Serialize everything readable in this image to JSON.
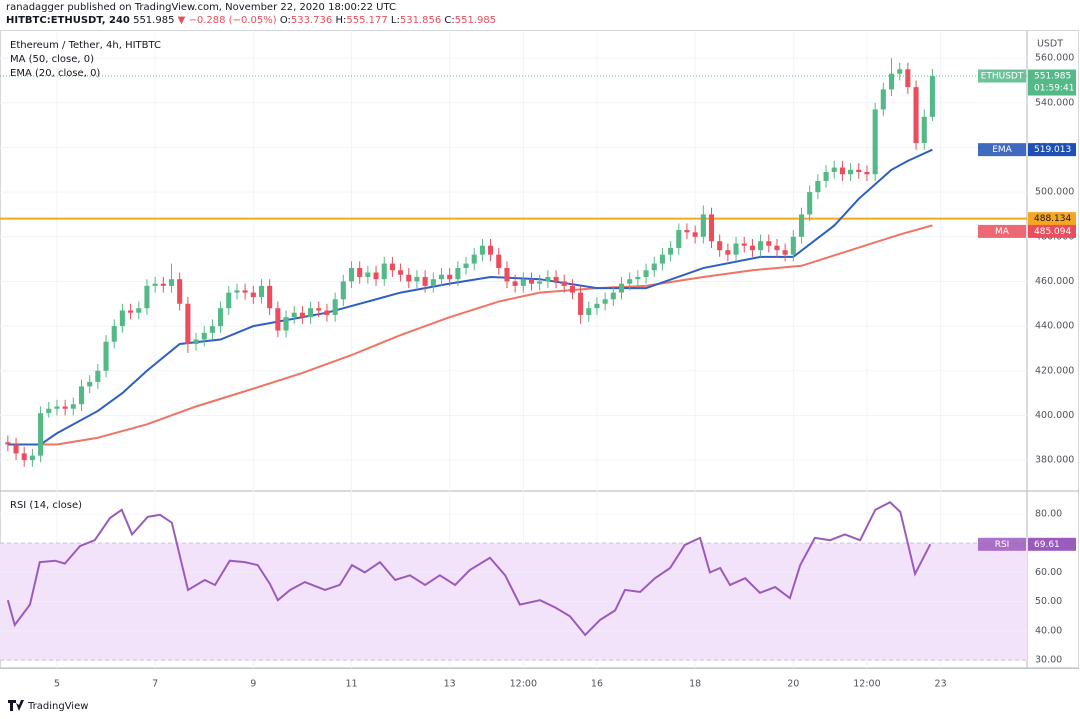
{
  "header": {
    "publisher": "ranadagger published on TradingView.com, November 22, 2020 18:00:22 UTC",
    "symbol": "HITBTC:ETHUSDT, 240",
    "change": "▼ −0.288 (−0.05%)",
    "ohlc_labels": [
      "O:",
      "H:",
      "L:",
      "C:"
    ],
    "countdown": "01:59:41",
    "footer": "TradingView"
  },
  "chart_data": [
    {
      "type": "candlestick",
      "title": "Ethereum / Tether, 4h, HITBTC",
      "unit": "USDT",
      "symbol_badge": "ETHUSDT",
      "up_color": "#53b987",
      "down_color": "#eb4d5c",
      "xlim": [
        3.84,
        24.76
      ],
      "ylim": [
        366.6,
        571.7
      ],
      "yticks": [
        {
          "value": 380,
          "label": "380.000"
        },
        {
          "value": 400,
          "label": "400.000"
        },
        {
          "value": 420,
          "label": "420.000"
        },
        {
          "value": 440,
          "label": "440.000"
        },
        {
          "value": 460,
          "label": "460.000"
        },
        {
          "value": 480,
          "label": "480.000"
        },
        {
          "value": 500,
          "label": "500.000"
        },
        {
          "value": 520,
          "label": "520.000"
        },
        {
          "value": 540,
          "label": "540.000"
        },
        {
          "value": 560,
          "label": "560.000"
        }
      ],
      "x": [
        4,
        4.167,
        4.333,
        4.5,
        4.667,
        4.833,
        5,
        5.167,
        5.333,
        5.5,
        5.667,
        5.833,
        6,
        6.167,
        6.333,
        6.5,
        6.667,
        6.833,
        7,
        7.167,
        7.333,
        7.5,
        7.667,
        7.833,
        8,
        8.167,
        8.333,
        8.5,
        8.667,
        8.833,
        9,
        9.167,
        9.333,
        9.5,
        9.667,
        9.833,
        10,
        10.167,
        10.333,
        10.5,
        10.667,
        10.833,
        11,
        11.167,
        11.333,
        11.5,
        11.667,
        11.833,
        12,
        12.167,
        12.333,
        12.5,
        12.667,
        12.833,
        13,
        13.167,
        13.333,
        13.5,
        13.667,
        13.833,
        14,
        14.167,
        14.333,
        14.5,
        14.667,
        14.833,
        15,
        15.167,
        15.333,
        15.5,
        15.667,
        15.833,
        16,
        16.167,
        16.333,
        16.5,
        16.667,
        16.833,
        17,
        17.167,
        17.333,
        17.5,
        17.667,
        17.833,
        18,
        18.167,
        18.333,
        18.5,
        18.667,
        18.833,
        19,
        19.167,
        19.333,
        19.5,
        19.667,
        19.833,
        20,
        20.167,
        20.333,
        20.5,
        20.667,
        20.833,
        21,
        21.167,
        21.333,
        21.5,
        21.667,
        21.833,
        22,
        22.167,
        22.333,
        22.5,
        22.667,
        22.833
      ],
      "open": [
        388,
        387,
        383,
        380,
        382,
        401,
        403,
        404,
        403,
        405,
        413,
        415,
        420,
        433,
        440,
        447,
        446,
        448,
        458,
        459,
        458,
        461,
        450,
        432,
        434,
        437,
        440,
        448,
        455,
        456,
        455,
        453,
        458,
        448,
        438,
        444,
        446,
        444,
        448,
        447,
        445,
        452,
        460,
        466,
        462,
        464,
        461,
        468,
        465,
        463,
        460,
        462,
        458,
        461,
        463,
        461,
        466,
        468,
        472,
        476,
        472,
        466,
        460,
        458,
        461,
        459,
        460,
        462,
        460,
        458,
        455,
        445,
        448,
        450,
        452,
        455,
        459,
        461,
        462,
        465,
        468,
        472,
        475,
        483,
        482,
        480,
        490,
        478,
        474,
        472,
        477,
        476,
        474,
        478,
        476,
        474,
        472,
        480,
        490,
        500,
        505,
        509,
        511,
        508,
        510,
        509,
        508,
        537,
        546,
        553,
        555,
        547,
        522,
        533.736
      ],
      "high": [
        391,
        390,
        386,
        385,
        404,
        406,
        407,
        407,
        408,
        416,
        418,
        423,
        436,
        443,
        450,
        450,
        451,
        461,
        462,
        462,
        468,
        464,
        453,
        437,
        440,
        443,
        451,
        458,
        459,
        459,
        458,
        461,
        461,
        451,
        447,
        449,
        449,
        451,
        451,
        450,
        455,
        463,
        469,
        469,
        467,
        467,
        471,
        471,
        468,
        466,
        465,
        465,
        464,
        466,
        466,
        469,
        471,
        475,
        479,
        479,
        475,
        469,
        463,
        464,
        464,
        463,
        465,
        465,
        463,
        461,
        458,
        451,
        453,
        455,
        458,
        462,
        464,
        465,
        468,
        471,
        475,
        478,
        486,
        486,
        485,
        494,
        493,
        481,
        477,
        480,
        480,
        479,
        481,
        481,
        479,
        477,
        483,
        493,
        503,
        508,
        512,
        514,
        514,
        513,
        513,
        512,
        540,
        549,
        560,
        558,
        558,
        550,
        537,
        555.177
      ],
      "low": [
        384,
        380,
        377,
        377,
        379,
        399,
        400,
        400,
        400,
        402,
        410,
        412,
        417,
        430,
        437,
        443,
        443,
        445,
        455,
        455,
        455,
        447,
        428,
        429,
        431,
        434,
        437,
        445,
        452,
        452,
        450,
        450,
        445,
        435,
        435,
        441,
        441,
        441,
        444,
        442,
        442,
        449,
        457,
        459,
        459,
        458,
        458,
        462,
        460,
        457,
        457,
        455,
        455,
        458,
        458,
        458,
        463,
        465,
        469,
        469,
        463,
        457,
        455,
        455,
        456,
        456,
        457,
        457,
        455,
        452,
        441,
        442,
        445,
        447,
        449,
        452,
        456,
        458,
        459,
        462,
        465,
        469,
        472,
        479,
        477,
        477,
        475,
        471,
        469,
        469,
        473,
        471,
        471,
        473,
        471,
        469,
        469,
        477,
        487,
        497,
        502,
        506,
        505,
        505,
        506,
        505,
        505,
        534,
        543,
        550,
        544,
        519,
        519,
        531.856
      ],
      "close": [
        387,
        383,
        380,
        382,
        401,
        403,
        404,
        403,
        405,
        413,
        415,
        420,
        433,
        440,
        447,
        446,
        448,
        458,
        459,
        458,
        461,
        450,
        432,
        434,
        437,
        440,
        448,
        455,
        456,
        455,
        453,
        458,
        448,
        438,
        444,
        446,
        444,
        448,
        447,
        445,
        452,
        460,
        466,
        462,
        464,
        461,
        468,
        465,
        463,
        460,
        462,
        458,
        461,
        463,
        461,
        466,
        468,
        472,
        476,
        472,
        466,
        460,
        458,
        461,
        459,
        460,
        462,
        460,
        458,
        455,
        445,
        448,
        450,
        452,
        455,
        459,
        461,
        462,
        465,
        468,
        472,
        475,
        483,
        482,
        480,
        490,
        478,
        474,
        472,
        477,
        476,
        474,
        478,
        476,
        474,
        472,
        480,
        490,
        500,
        505,
        509,
        511,
        508,
        510,
        509,
        508,
        537,
        546,
        553,
        555,
        547,
        522,
        533.736,
        551.985
      ],
      "lines": [
        {
          "name": "MA (50, close, 0)",
          "badge": "MA",
          "color": "#f07464",
          "x": [
            4,
            5,
            5.833,
            6.833,
            7.833,
            9,
            10,
            11,
            12,
            13,
            14,
            14.833,
            16,
            17,
            18.167,
            19.167,
            20.167,
            21.167,
            22.167,
            22.833
          ],
          "values": [
            387,
            387,
            390,
            396,
            404,
            412,
            419,
            427,
            436,
            444,
            451,
            455,
            457,
            458,
            462,
            465,
            467,
            474,
            481,
            485.094
          ]
        },
        {
          "name": "EMA (20, close, 0)",
          "badge": "EMA",
          "color": "#2f5fc4",
          "x": [
            4,
            4.667,
            5,
            5.833,
            6.333,
            6.833,
            7.5,
            8.333,
            9,
            9.5,
            10.5,
            12,
            13,
            13.833,
            14.833,
            16,
            17,
            18.167,
            19.333,
            20,
            20.833,
            21.333,
            22,
            22.333,
            22.833
          ],
          "values": [
            387,
            387,
            392,
            402,
            410,
            420,
            432,
            434,
            440,
            442,
            446,
            455,
            459,
            462,
            461,
            457,
            457,
            466,
            471,
            471,
            485,
            497,
            510,
            514,
            519.013
          ]
        }
      ],
      "hline": {
        "value": 488.134,
        "color": "#f5a623"
      }
    },
    {
      "type": "line",
      "ylim": [
        27.3,
        87.5
      ],
      "band": [
        30,
        70
      ],
      "band_color": "#f3e3fa",
      "yticks": [
        {
          "value": 30,
          "label": "30.00"
        },
        {
          "value": 40,
          "label": "40.00"
        },
        {
          "value": 50,
          "label": "50.00"
        },
        {
          "value": 60,
          "label": "60.00"
        },
        {
          "value": 70,
          "label": "70.00"
        },
        {
          "value": 80,
          "label": "80.00"
        }
      ],
      "xticks": [
        5,
        7,
        9,
        11,
        13,
        {
          "value": 14.5,
          "label": "12:00"
        },
        16,
        18,
        20,
        {
          "value": 21.5,
          "label": "12:00"
        },
        23
      ],
      "series": [
        {
          "name": "RSI (14, close)",
          "badge": "RSI",
          "color": "#9b5bbd",
          "x": [
            4,
            4.14,
            4.45,
            4.65,
            4.96,
            5.16,
            5.47,
            5.77,
            6.08,
            6.32,
            6.53,
            6.85,
            7.1,
            7.34,
            7.67,
            8.01,
            8.22,
            8.52,
            8.83,
            9.09,
            9.34,
            9.5,
            9.75,
            10.05,
            10.46,
            10.76,
            11.01,
            11.27,
            11.58,
            11.89,
            12.19,
            12.5,
            12.8,
            13.11,
            13.41,
            13.82,
            14.13,
            14.43,
            14.84,
            15.15,
            15.45,
            15.76,
            16.06,
            16.37,
            16.57,
            16.88,
            17.18,
            17.49,
            17.79,
            18.1,
            18.3,
            18.51,
            18.71,
            19.02,
            19.32,
            19.63,
            19.93,
            20.14,
            20.44,
            20.75,
            21.05,
            21.36,
            21.67,
            21.97,
            22.18,
            22.48,
            22.79
          ],
          "values": [
            50.5,
            42,
            49,
            63.5,
            64,
            63,
            69,
            71,
            78.6,
            81.4,
            73,
            79,
            79.7,
            77,
            54,
            57.4,
            55.7,
            64,
            63.5,
            62.5,
            56,
            50.5,
            54,
            56.7,
            54,
            55.7,
            62.5,
            60,
            63.5,
            57.4,
            59,
            55.7,
            59,
            55.7,
            60.8,
            65,
            59,
            49,
            50.5,
            48,
            45,
            38.6,
            43.7,
            47,
            54,
            53.3,
            58,
            61.5,
            69.4,
            71.8,
            60,
            61.5,
            55.7,
            58,
            53,
            55,
            51.2,
            62.5,
            71.8,
            71,
            73,
            71,
            81.4,
            84,
            80.7,
            59.5,
            69.61
          ]
        }
      ]
    }
  ]
}
